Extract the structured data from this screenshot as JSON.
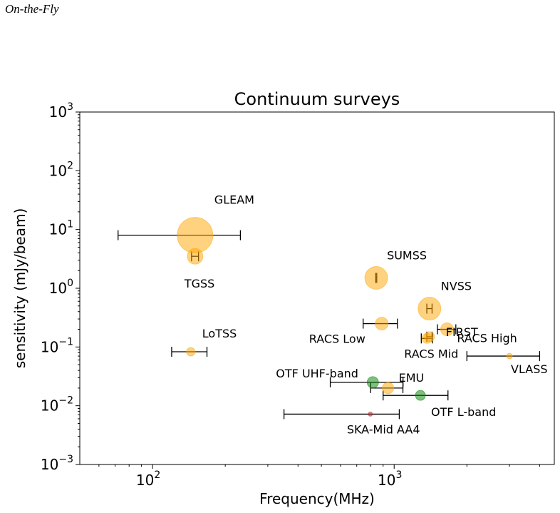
{
  "header": {
    "running_title": "On-the-Fly"
  },
  "chart_data": {
    "type": "scatter",
    "title": "Continuum surveys",
    "xlabel": "Frequency(MHz)",
    "ylabel": "sensitivity (mJy/beam)",
    "xscale": "log",
    "yscale": "log",
    "xlim": [
      50,
      4600
    ],
    "ylim": [
      0.001,
      1000
    ],
    "x_ticks": [
      {
        "value": 100,
        "base": "10",
        "exp": "2"
      },
      {
        "value": 1000,
        "base": "10",
        "exp": "3"
      }
    ],
    "y_ticks": [
      {
        "value": 0.001,
        "base": "10",
        "exp": "−3"
      },
      {
        "value": 0.01,
        "base": "10",
        "exp": "−2"
      },
      {
        "value": 0.1,
        "base": "10",
        "exp": "−1"
      },
      {
        "value": 1,
        "base": "10",
        "exp": "0"
      },
      {
        "value": 10,
        "base": "10",
        "exp": "1"
      },
      {
        "value": 100,
        "base": "10",
        "exp": "2"
      },
      {
        "value": 1000,
        "base": "10",
        "exp": "3"
      }
    ],
    "colors": {
      "existing": "#ffa500",
      "otf": "#008000",
      "ska": "#b22222"
    },
    "points": [
      {
        "label": "GLEAM",
        "x": 150,
        "y": 8.0,
        "xmin": 72,
        "xmax": 231,
        "size": 25,
        "group": "existing",
        "label_x": 150,
        "label_y": 10
      },
      {
        "label": "TGSS",
        "x": 150,
        "y": 3.5,
        "xmin": 145,
        "xmax": 155,
        "size": 11,
        "group": "existing",
        "label_x": 150,
        "label_y": 3.5
      },
      {
        "label": "SUMSS",
        "x": 843,
        "y": 1.5,
        "xmin": 839,
        "xmax": 847,
        "size": 16,
        "group": "existing",
        "label_x": 843,
        "label_y": 1.5
      },
      {
        "label": "NVSS",
        "x": 1400,
        "y": 0.45,
        "xmin": 1365,
        "xmax": 1435,
        "size": 16,
        "group": "existing",
        "label_x": 1400,
        "label_y": 0.45
      },
      {
        "label": "LoTSS",
        "x": 144,
        "y": 0.083,
        "xmin": 120,
        "xmax": 168,
        "size": 6,
        "group": "existing",
        "label_x": 144,
        "label_y": 0.083
      },
      {
        "label": "RACS Low",
        "x": 888,
        "y": 0.25,
        "xmin": 744,
        "xmax": 1032,
        "size": 9,
        "group": "existing",
        "label_x": 888,
        "label_y": 0.25
      },
      {
        "label": "FIRST",
        "x": 1400,
        "y": 0.15,
        "xmin": 1365,
        "xmax": 1435,
        "size": 7,
        "group": "existing",
        "label_x": 1400,
        "label_y": 0.15
      },
      {
        "label": "RACS High",
        "x": 1655,
        "y": 0.2,
        "xmin": 1510,
        "xmax": 1800,
        "size": 9,
        "group": "existing",
        "label_x": 1655,
        "label_y": 0.2
      },
      {
        "label": "RACS Mid",
        "x": 1367,
        "y": 0.14,
        "xmin": 1295,
        "xmax": 1439,
        "size": 7,
        "group": "existing",
        "label_x": 1367,
        "label_y": 0.14
      },
      {
        "label": "VLASS",
        "x": 3000,
        "y": 0.07,
        "xmin": 2000,
        "xmax": 4000,
        "size": 4,
        "group": "existing",
        "label_x": 3000,
        "label_y": 0.07
      },
      {
        "label": "EMU",
        "x": 943,
        "y": 0.02,
        "xmin": 799,
        "xmax": 1087,
        "size": 8,
        "group": "existing",
        "label_x": 943,
        "label_y": 0.02
      },
      {
        "label": "OTF UHF-band",
        "x": 816,
        "y": 0.025,
        "xmin": 544,
        "xmax": 1088,
        "size": 8,
        "group": "otf",
        "label_x": 816,
        "label_y": 0.025
      },
      {
        "label": "OTF L-band",
        "x": 1284,
        "y": 0.015,
        "xmin": 900,
        "xmax": 1670,
        "size": 7,
        "group": "otf",
        "label_x": 1284,
        "label_y": 0.015
      },
      {
        "label": "SKA-Mid AA4",
        "x": 797,
        "y": 0.0072,
        "xmin": 350,
        "xmax": 1050,
        "size": 3,
        "group": "ska",
        "label_x": 797,
        "label_y": 0.0072
      }
    ]
  }
}
